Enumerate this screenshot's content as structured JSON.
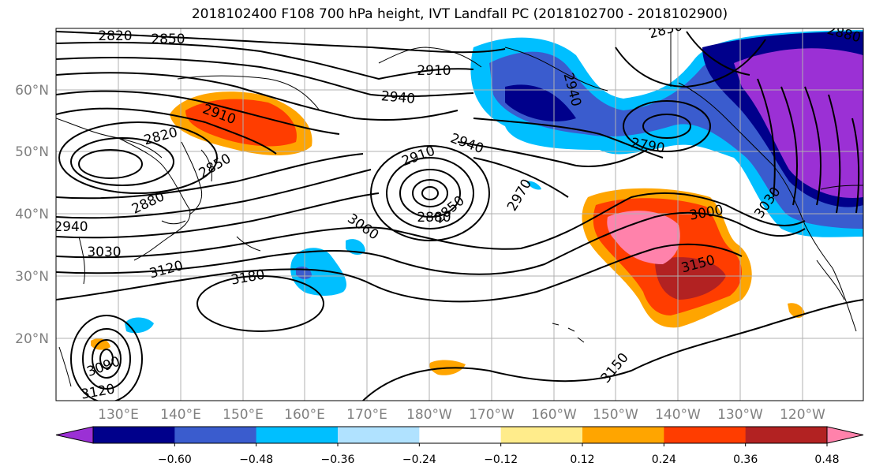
{
  "title": "2018102400 F108 700 hPa height, IVT Landfall PC (2018102700 - 2018102900)",
  "map": {
    "lat_labels": [
      "60°N",
      "50°N",
      "40°N",
      "30°N",
      "20°N"
    ],
    "lon_labels": [
      "130°E",
      "140°E",
      "150°E",
      "160°E",
      "170°E",
      "180°W",
      "170°W",
      "160°W",
      "150°W",
      "140°W",
      "130°W",
      "120°W"
    ],
    "contour_labels": [
      "2820",
      "2850",
      "2910",
      "2940",
      "2820",
      "2850",
      "2880",
      "2910",
      "2940",
      "2790",
      "2850",
      "2880",
      "2910",
      "2940",
      "2970",
      "3000",
      "3030",
      "3060",
      "3120",
      "3180",
      "3150",
      "3090",
      "3120",
      "3150",
      "2940",
      "2880",
      "2850",
      "3030",
      "2850",
      "2880",
      "2910",
      "3060",
      "3090"
    ]
  },
  "colorbar": {
    "colors": [
      "#9b30d5",
      "#00008b",
      "#3a5cce",
      "#00bfff",
      "#b0e2ff",
      "#ffffff",
      "#ffec8b",
      "#ffa500",
      "#ff3d00",
      "#b22222",
      "#ff82ab"
    ],
    "tick_labels": [
      "−0.60",
      "−0.48",
      "−0.36",
      "−0.24",
      "−0.12",
      "0.12",
      "0.24",
      "0.36",
      "0.48",
      "0.60"
    ]
  }
}
